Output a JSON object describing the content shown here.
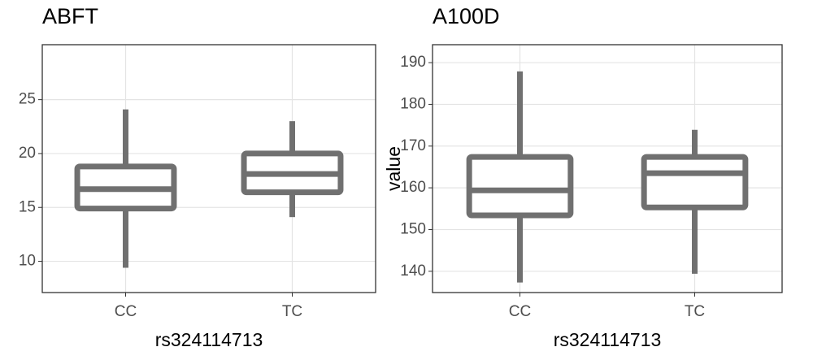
{
  "chart_data": [
    {
      "type": "box",
      "title": "ABFT",
      "x_label": "rs324114713",
      "categories": [
        "CC",
        "TC"
      ],
      "color": "#707070",
      "values": [
        {
          "min": 9.4,
          "q1": 14.9,
          "median": 16.7,
          "q3": 18.8,
          "max": 24.1
        },
        {
          "min": 14.1,
          "q1": 16.4,
          "median": 18.1,
          "q3": 20.0,
          "max": 23.0
        }
      ],
      "ylim": [
        7.1,
        30.1
      ],
      "yticks": [
        10,
        15,
        20,
        25
      ],
      "grid": true
    },
    {
      "type": "box",
      "title": "A100D",
      "x_label": "rs324114713",
      "y_label": "value",
      "categories": [
        "CC",
        "TC"
      ],
      "color": "#707070",
      "values": [
        {
          "min": 137.3,
          "q1": 153.4,
          "median": 159.4,
          "q3": 167.4,
          "max": 187.9
        },
        {
          "min": 139.4,
          "q1": 155.3,
          "median": 163.5,
          "q3": 167.4,
          "max": 173.9
        }
      ],
      "ylim": [
        134.9,
        194.3
      ],
      "yticks": [
        140,
        150,
        160,
        170,
        180,
        190
      ],
      "grid": true
    }
  ]
}
